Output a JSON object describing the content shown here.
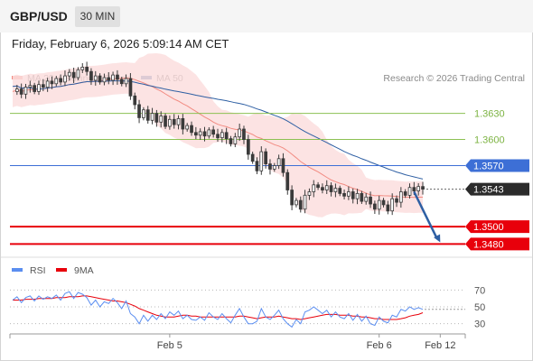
{
  "header": {
    "pair": "GBP/USD",
    "timeframe": "30 MIN",
    "datetime": "Friday, February 6, 2026 5:09:14 AM CET"
  },
  "colors": {
    "ma20_band": "#f28b82",
    "band_fill": "#fcdede",
    "ma50": "#2e5fa3",
    "candle": "#3a3a3a",
    "green_level": "#8cc152",
    "blue_level": "#3d6fd6",
    "red_level": "#e8000b",
    "current_price": "#2b2b2b",
    "arrow": "#2e5fa3",
    "rsi": "#5b8ef0",
    "rsi_ma": "#e8000b"
  },
  "chart_data": [
    {
      "type": "candlestick",
      "legend": [
        {
          "name": "MA 20 + Bollinger Bands",
          "color": "#f28b82"
        },
        {
          "name": "MA 50",
          "color": "#2e5fa3"
        }
      ],
      "legend_position": "top-left",
      "credit": "Research © 2026 Trading Central",
      "ylim": [
        1.3468,
        1.37
      ],
      "x_ticks": [
        {
          "label": "Feb 5",
          "index": 36
        },
        {
          "label": "Feb 6",
          "index": 84
        },
        {
          "label": "Feb 12",
          "index": 98
        }
      ],
      "levels": [
        {
          "value": 1.363,
          "label": "1.3630",
          "style": "green"
        },
        {
          "value": 1.36,
          "label": "1.3600",
          "style": "green"
        },
        {
          "value": 1.357,
          "label": "1.3570",
          "style": "blue"
        },
        {
          "value": 1.3543,
          "label": "1.3543",
          "style": "current"
        },
        {
          "value": 1.35,
          "label": "1.3500",
          "style": "red"
        },
        {
          "value": 1.348,
          "label": "1.3480",
          "style": "red"
        }
      ],
      "projection": {
        "from": [
          92,
          1.354
        ],
        "to": [
          98,
          1.3482
        ]
      },
      "close": [
        1.3655,
        1.3658,
        1.3652,
        1.366,
        1.3662,
        1.3655,
        1.3663,
        1.366,
        1.3667,
        1.3664,
        1.367,
        1.3666,
        1.3673,
        1.3677,
        1.3671,
        1.368,
        1.3683,
        1.3678,
        1.3668,
        1.3673,
        1.3666,
        1.3671,
        1.3668,
        1.3674,
        1.3669,
        1.3664,
        1.367,
        1.365,
        1.364,
        1.3625,
        1.3634,
        1.3622,
        1.363,
        1.362,
        1.3627,
        1.3615,
        1.3623,
        1.3617,
        1.3624,
        1.3612,
        1.3616,
        1.3608,
        1.3605,
        1.3609,
        1.3604,
        1.3611,
        1.3606,
        1.3602,
        1.3608,
        1.3601,
        1.3595,
        1.3603,
        1.3612,
        1.36,
        1.3583,
        1.3575,
        1.3564,
        1.3586,
        1.3572,
        1.3566,
        1.357,
        1.3578,
        1.3562,
        1.3542,
        1.3525,
        1.353,
        1.352,
        1.3536,
        1.354,
        1.3548,
        1.3545,
        1.3542,
        1.3547,
        1.354,
        1.3544,
        1.3538,
        1.3535,
        1.354,
        1.3532,
        1.3538,
        1.3529,
        1.3534,
        1.3526,
        1.352,
        1.353,
        1.3525,
        1.3518,
        1.3532,
        1.3528,
        1.354,
        1.3536,
        1.3545,
        1.3541,
        1.3546,
        1.3543
      ]
    },
    {
      "type": "line",
      "legend": [
        {
          "name": "RSI",
          "color": "#5b8ef0"
        },
        {
          "name": "9MA",
          "color": "#e8000b"
        }
      ],
      "ylim": [
        20,
        80
      ],
      "y_ticks": [
        70,
        50,
        30
      ],
      "series": [
        {
          "name": "RSI",
          "values": [
            58,
            62,
            55,
            61,
            63,
            57,
            63,
            59,
            62,
            60,
            64,
            58,
            66,
            68,
            60,
            67,
            65,
            61,
            52,
            58,
            50,
            56,
            54,
            60,
            55,
            48,
            57,
            42,
            38,
            30,
            40,
            33,
            40,
            35,
            42,
            36,
            44,
            40,
            45,
            36,
            40,
            35,
            34,
            38,
            34,
            43,
            38,
            35,
            42,
            36,
            31,
            40,
            48,
            38,
            30,
            30,
            33,
            48,
            38,
            35,
            40,
            46,
            36,
            30,
            26,
            35,
            30,
            44,
            46,
            50,
            46,
            42,
            46,
            38,
            44,
            38,
            36,
            42,
            34,
            41,
            33,
            39,
            30,
            28,
            38,
            33,
            31,
            40,
            38,
            47,
            45,
            50,
            47,
            49,
            47
          ]
        },
        {
          "name": "9MA",
          "values": [
            58,
            58,
            58,
            59,
            59,
            59,
            60,
            60,
            60,
            60,
            61,
            61,
            61,
            62,
            62,
            62,
            63,
            63,
            62,
            61,
            60,
            59,
            58,
            57,
            57,
            56,
            55,
            53,
            51,
            48,
            46,
            44,
            42,
            40,
            39,
            38,
            38,
            38,
            39,
            40,
            40,
            39,
            39,
            38,
            38,
            38,
            38,
            38,
            38,
            38,
            38,
            38,
            39,
            39,
            38,
            37,
            36,
            37,
            38,
            38,
            38,
            39,
            38,
            37,
            36,
            36,
            35,
            36,
            37,
            38,
            39,
            40,
            41,
            41,
            41,
            40,
            40,
            40,
            39,
            39,
            38,
            38,
            37,
            36,
            36,
            35,
            35,
            35,
            35,
            36,
            37,
            39,
            40,
            41,
            43
          ]
        }
      ]
    }
  ]
}
